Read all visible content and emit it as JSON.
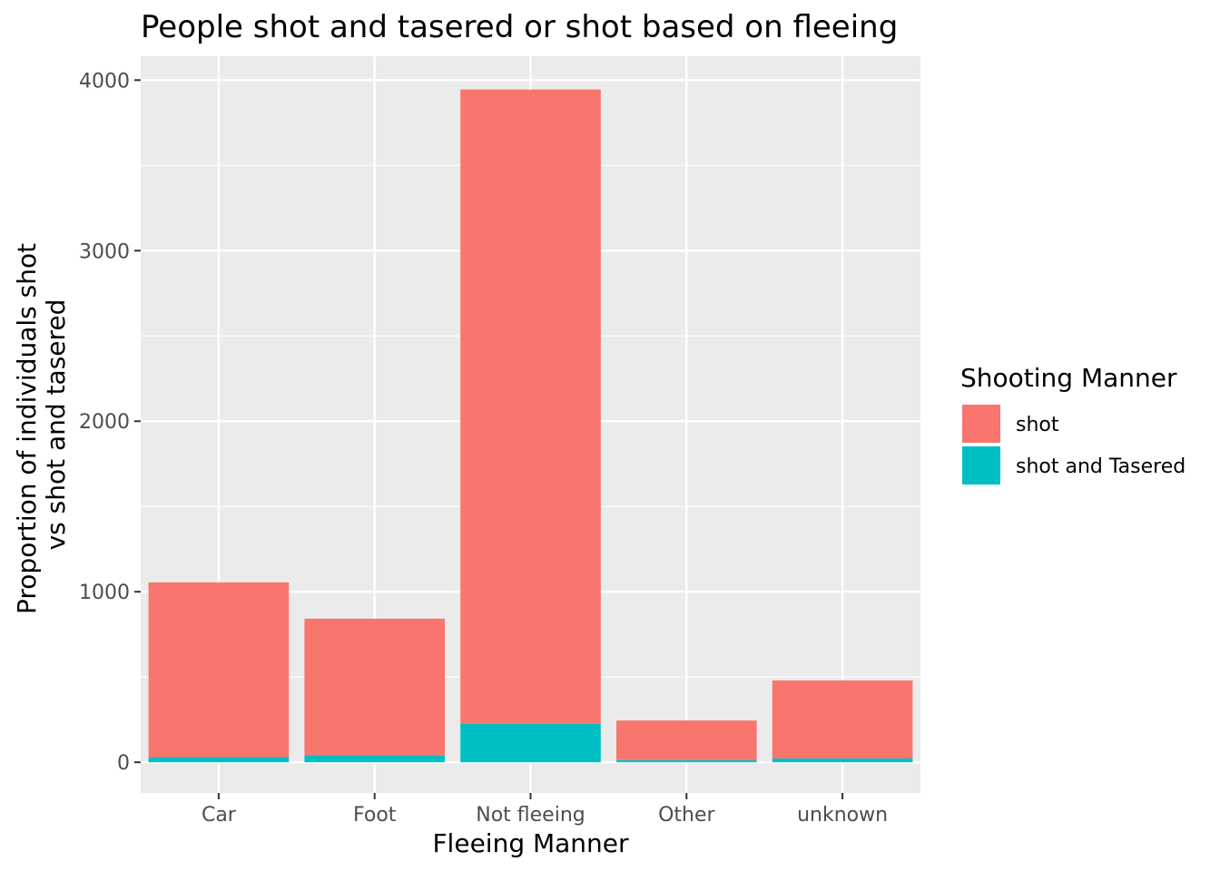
{
  "chart_data": {
    "type": "bar",
    "stacked": true,
    "title": "People shot and tasered or shot based on fleeing",
    "xlabel": "Fleeing Manner",
    "ylabel": [
      "Proportion of individuals shot",
      "vs shot and tasered"
    ],
    "categories": [
      "Car",
      "Foot",
      "Not fleeing",
      "Other",
      "unknown"
    ],
    "series": [
      {
        "name": "shot and Tasered",
        "color": "#00BFC4",
        "values": [
          30,
          42,
          225,
          13,
          22
        ]
      },
      {
        "name": "shot",
        "color": "#F8766D",
        "values": [
          1025,
          800,
          3720,
          232,
          458
        ]
      }
    ],
    "ylim": [
      -180,
      4140
    ],
    "yticks": [
      0,
      1000,
      2000,
      3000,
      4000
    ],
    "ytick_labels": [
      "0",
      "1000",
      "2000",
      "3000",
      "4000"
    ],
    "grid": true,
    "panel_color": "#EBEBEB",
    "legend": {
      "title": "Shooting Manner",
      "placement": "right",
      "entries": [
        {
          "label": "shot",
          "color": "#F8766D"
        },
        {
          "label": "shot and Tasered",
          "color": "#00BFC4"
        }
      ]
    }
  }
}
